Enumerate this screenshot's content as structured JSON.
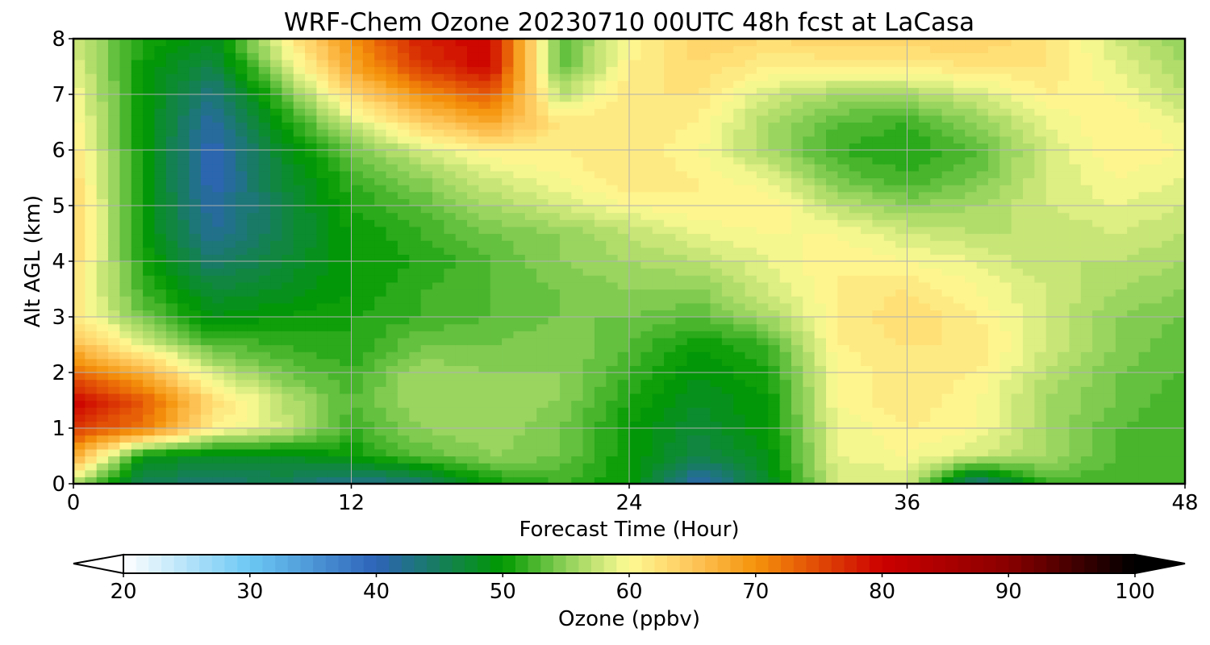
{
  "chart_data": {
    "type": "heatmap",
    "title": "WRF-Chem Ozone  20230710 00UTC 48h fcst at LaCasa",
    "xlabel": "Forecast Time (Hour)",
    "ylabel": "Alt AGL (km)",
    "xlim": [
      0,
      48
    ],
    "ylim": [
      0,
      8
    ],
    "x_ticks": [
      0,
      12,
      24,
      36,
      48
    ],
    "y_ticks": [
      0,
      1,
      2,
      3,
      4,
      5,
      6,
      7,
      8
    ],
    "grid": true,
    "x": [
      0,
      3,
      6,
      9,
      12,
      15,
      18,
      21,
      24,
      27,
      30,
      33,
      36,
      39,
      42,
      45,
      48
    ],
    "y": [
      0,
      0.5,
      1,
      1.5,
      2,
      2.5,
      3,
      3.5,
      4,
      4.5,
      5,
      5.5,
      6,
      6.5,
      7,
      7.5,
      8
    ],
    "z": [
      [
        56,
        45,
        44,
        45,
        42,
        44,
        50,
        52,
        50,
        40,
        48,
        58,
        58,
        42,
        52,
        52,
        52
      ],
      [
        68,
        49,
        48,
        48,
        50,
        53,
        55,
        54,
        50,
        46,
        49,
        59,
        60,
        58,
        56,
        53,
        53
      ],
      [
        76,
        72,
        61,
        58,
        52,
        55,
        56,
        54,
        50,
        47,
        50,
        59,
        61,
        60,
        56,
        53,
        52
      ],
      [
        80,
        74,
        63,
        57,
        53,
        56,
        56,
        55,
        51,
        48,
        50,
        60,
        62,
        60,
        56,
        54,
        52
      ],
      [
        73,
        67,
        58,
        54,
        52,
        56,
        55,
        55,
        52,
        49,
        51,
        60,
        62,
        61,
        57,
        54,
        53
      ],
      [
        66,
        59,
        53,
        52,
        51,
        54,
        54,
        55,
        53,
        50,
        52,
        61,
        62,
        62,
        58,
        55,
        53
      ],
      [
        62,
        54,
        49,
        50,
        51,
        52,
        53,
        54,
        54,
        53,
        56,
        61,
        63,
        61,
        58,
        55,
        54
      ],
      [
        62,
        52,
        47,
        48,
        50,
        52,
        53,
        54,
        55,
        55,
        58,
        61,
        62,
        60,
        58,
        56,
        55
      ],
      [
        63,
        51,
        44,
        47,
        50,
        51,
        53,
        55,
        56,
        57,
        59,
        61,
        60,
        59,
        57,
        57,
        56
      ],
      [
        64,
        50,
        42,
        46,
        50,
        52,
        54,
        55,
        57,
        59,
        60,
        60,
        58,
        57,
        57,
        58,
        57
      ],
      [
        64,
        50,
        41,
        46,
        51,
        53,
        56,
        58,
        60,
        61,
        61,
        57,
        55,
        56,
        58,
        59,
        58
      ],
      [
        63,
        50,
        40,
        47,
        52,
        55,
        58,
        60,
        62,
        61,
        59,
        54,
        52,
        54,
        58,
        60,
        59
      ],
      [
        62,
        50,
        40,
        48,
        54,
        58,
        61,
        61,
        62,
        60,
        56,
        52,
        51,
        53,
        58,
        61,
        60
      ],
      [
        61,
        50,
        41,
        50,
        58,
        64,
        68,
        62,
        62,
        61,
        56,
        53,
        52,
        55,
        59,
        61,
        59
      ],
      [
        60,
        50,
        43,
        53,
        63,
        70,
        74,
        57,
        62,
        62,
        58,
        56,
        56,
        58,
        61,
        60,
        57
      ],
      [
        59,
        50,
        46,
        57,
        68,
        76,
        80,
        53,
        61,
        63,
        61,
        61,
        61,
        62,
        62,
        59,
        56
      ],
      [
        58,
        51,
        48,
        60,
        70,
        78,
        80,
        53,
        60,
        64,
        63,
        64,
        64,
        64,
        62,
        58,
        55
      ]
    ],
    "colorbar": {
      "label": "Ozone  (ppbv)",
      "min": 20,
      "max": 100,
      "tick_values": [
        20,
        30,
        40,
        50,
        60,
        70,
        80,
        90,
        100
      ],
      "extend": "both",
      "stops": [
        {
          "v": 20,
          "c": "#ffffff"
        },
        {
          "v": 30,
          "c": "#6cc8f4"
        },
        {
          "v": 40,
          "c": "#2d63b8"
        },
        {
          "v": 50,
          "c": "#009900"
        },
        {
          "v": 55,
          "c": "#8fd15a"
        },
        {
          "v": 60,
          "c": "#fffa94"
        },
        {
          "v": 65,
          "c": "#fdc65a"
        },
        {
          "v": 70,
          "c": "#f5930a"
        },
        {
          "v": 80,
          "c": "#cc0000"
        },
        {
          "v": 90,
          "c": "#8a0000"
        },
        {
          "v": 100,
          "c": "#000000"
        }
      ]
    }
  }
}
